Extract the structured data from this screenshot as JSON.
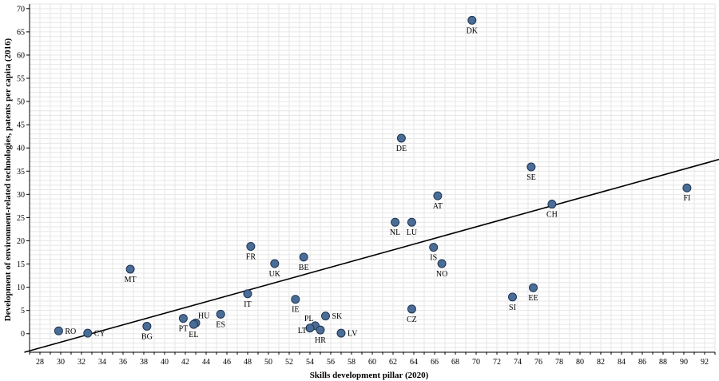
{
  "chart_data": {
    "type": "scatter",
    "xlabel": "Skills development pillar (2020)",
    "ylabel": "Development of environment-related technologies, patents per capita (2016)",
    "xlim": [
      27,
      93
    ],
    "ylim": [
      -4,
      71
    ],
    "xticks": [
      28,
      30,
      32,
      34,
      36,
      38,
      40,
      42,
      44,
      46,
      48,
      50,
      52,
      54,
      56,
      58,
      60,
      62,
      64,
      66,
      68,
      70,
      72,
      74,
      76,
      78,
      80,
      82,
      84,
      86,
      88,
      90,
      92
    ],
    "yticks": [
      0,
      5,
      10,
      15,
      20,
      25,
      30,
      35,
      40,
      45,
      50,
      55,
      60,
      65,
      70
    ],
    "grid": true,
    "points": [
      {
        "label": "RO",
        "x": 29.8,
        "y": 0.6,
        "pos": "right"
      },
      {
        "label": "CY",
        "x": 32.6,
        "y": 0.1,
        "pos": "right"
      },
      {
        "label": "BG",
        "x": 38.3,
        "y": 1.6,
        "pos": "below"
      },
      {
        "label": "MT",
        "x": 36.7,
        "y": 13.9,
        "pos": "below"
      },
      {
        "label": "PT",
        "x": 41.8,
        "y": 3.3,
        "pos": "below"
      },
      {
        "label": "HU",
        "x": 43.0,
        "y": 2.3,
        "pos": "aboveright"
      },
      {
        "label": "EL",
        "x": 42.8,
        "y": 2.0,
        "pos": "below"
      },
      {
        "label": "ES",
        "x": 45.4,
        "y": 4.2,
        "pos": "below"
      },
      {
        "label": "IT",
        "x": 48.0,
        "y": 8.6,
        "pos": "below"
      },
      {
        "label": "FR",
        "x": 48.3,
        "y": 18.8,
        "pos": "below"
      },
      {
        "label": "UK",
        "x": 50.6,
        "y": 15.1,
        "pos": "below"
      },
      {
        "label": "BE",
        "x": 53.4,
        "y": 16.5,
        "pos": "below"
      },
      {
        "label": "IE",
        "x": 52.6,
        "y": 7.4,
        "pos": "below"
      },
      {
        "label": "PL",
        "x": 54.5,
        "y": 1.7,
        "pos": "aboveleft"
      },
      {
        "label": "LT",
        "x": 54.0,
        "y": 1.2,
        "pos": "left"
      },
      {
        "label": "SK",
        "x": 55.5,
        "y": 3.8,
        "pos": "right"
      },
      {
        "label": "HR",
        "x": 55.0,
        "y": 0.8,
        "pos": "below"
      },
      {
        "label": "LV",
        "x": 57.0,
        "y": 0.1,
        "pos": "right"
      },
      {
        "label": "NL",
        "x": 62.2,
        "y": 24.0,
        "pos": "below"
      },
      {
        "label": "LU",
        "x": 63.8,
        "y": 24.0,
        "pos": "below"
      },
      {
        "label": "DE",
        "x": 62.8,
        "y": 42.1,
        "pos": "below"
      },
      {
        "label": "CZ",
        "x": 63.8,
        "y": 5.3,
        "pos": "below"
      },
      {
        "label": "AT",
        "x": 66.3,
        "y": 29.7,
        "pos": "below"
      },
      {
        "label": "IS",
        "x": 65.9,
        "y": 18.6,
        "pos": "below"
      },
      {
        "label": "NO",
        "x": 66.7,
        "y": 15.1,
        "pos": "below"
      },
      {
        "label": "DK",
        "x": 69.6,
        "y": 67.5,
        "pos": "below"
      },
      {
        "label": "SI",
        "x": 73.5,
        "y": 7.9,
        "pos": "below"
      },
      {
        "label": "EE",
        "x": 75.5,
        "y": 9.9,
        "pos": "below"
      },
      {
        "label": "SE",
        "x": 75.3,
        "y": 35.9,
        "pos": "below"
      },
      {
        "label": "CH",
        "x": 77.3,
        "y": 27.9,
        "pos": "below"
      },
      {
        "label": "FI",
        "x": 90.3,
        "y": 31.4,
        "pos": "below"
      }
    ],
    "trendline": {
      "x": [
        26.5,
        93.5
      ],
      "y": [
        -4.0,
        37.6
      ]
    }
  }
}
